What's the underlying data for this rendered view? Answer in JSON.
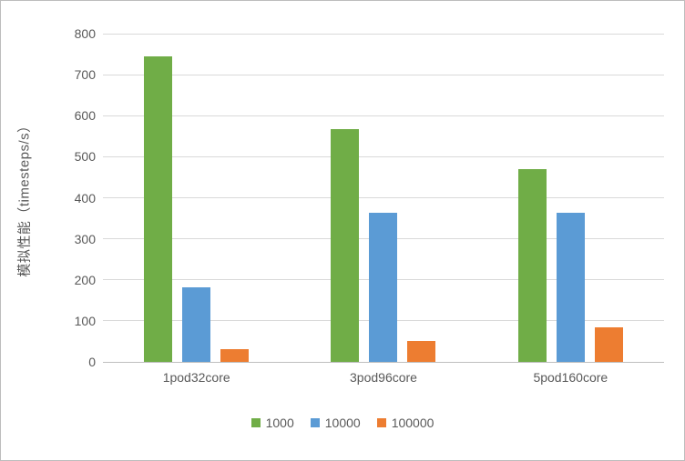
{
  "chart_data": {
    "type": "bar",
    "title": "",
    "xlabel": "",
    "ylabel": "模拟性能（timesteps/s）",
    "ylim": [
      0,
      800
    ],
    "ytick_step": 100,
    "grid": true,
    "legend_position": "bottom",
    "categories": [
      "1pod32core",
      "3pod96core",
      "5pod160core"
    ],
    "series": [
      {
        "name": "1000",
        "color": "#70AD47",
        "values": [
          745,
          567,
          469
        ]
      },
      {
        "name": "10000",
        "color": "#5B9BD5",
        "values": [
          182,
          364,
          364
        ]
      },
      {
        "name": "100000",
        "color": "#ED7D31",
        "values": [
          32,
          51,
          84
        ]
      }
    ]
  },
  "style": {
    "gridline_color": "#d9d9d9",
    "axis_line_color": "#bfbfbf",
    "text_color": "#595959",
    "background": "#ffffff"
  }
}
